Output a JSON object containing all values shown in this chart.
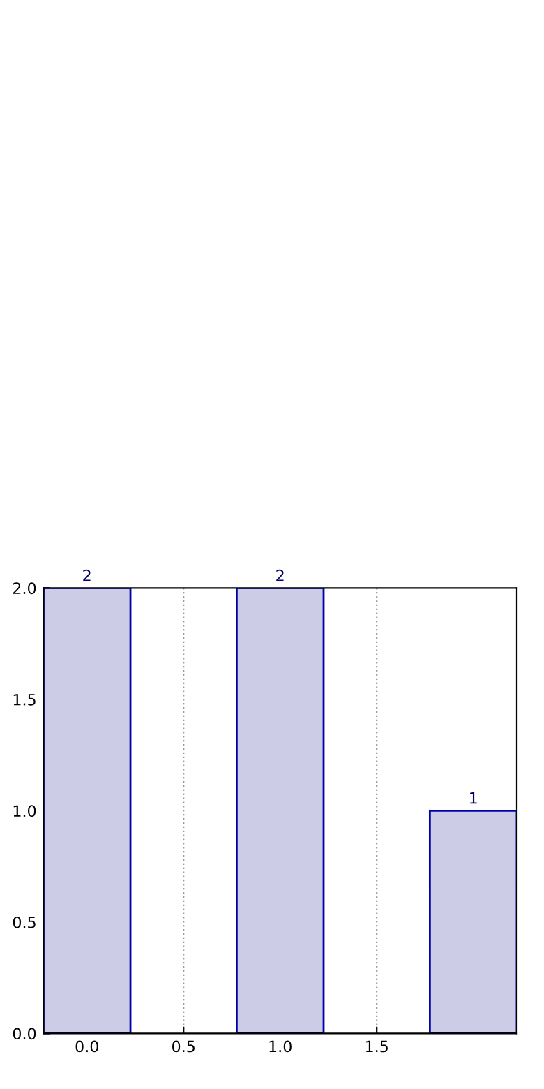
{
  "chart_data": {
    "type": "bar",
    "x": [
      0,
      1,
      2
    ],
    "values": [
      2,
      2,
      1
    ],
    "color": "#cccce6",
    "xlim": [
      -0.225,
      2.225
    ],
    "xticks": [
      {
        "value": 0,
        "label": "0.0"
      },
      {
        "value": 0.5,
        "label": "0.5"
      },
      {
        "value": 1,
        "label": "1.0"
      },
      {
        "value": 1.5,
        "label": "1.5"
      }
    ],
    "ylim": [
      0,
      2
    ],
    "yticks": [
      {
        "value": 0,
        "label": "0.0"
      },
      {
        "value": 0.5,
        "label": "0.5"
      },
      {
        "value": 1,
        "label": "1.0"
      },
      {
        "value": 1.5,
        "label": "1.5"
      },
      {
        "value": 2,
        "label": "2.0"
      }
    ],
    "grid": "x",
    "data_labels": true
  }
}
